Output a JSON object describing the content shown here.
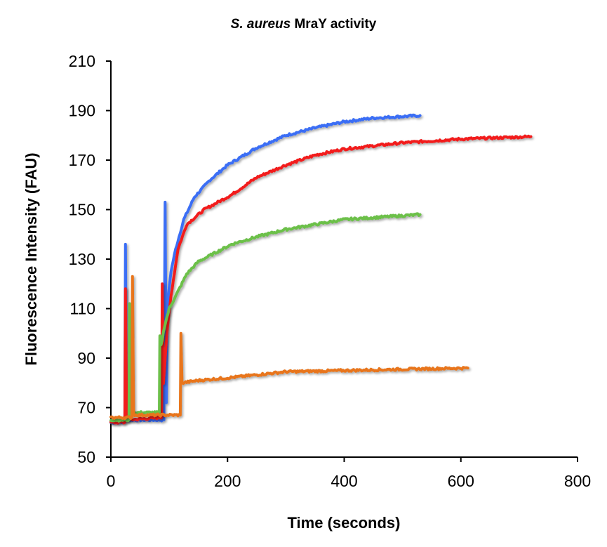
{
  "chart_data": {
    "type": "line",
    "title_italic": "S. aureus",
    "title_rest": " MraY activity",
    "xlabel": "Time (seconds)",
    "ylabel": "Fluorescence Intensity (FAU)",
    "xlim": [
      0,
      800
    ],
    "ylim": [
      50,
      210
    ],
    "xticks": [
      0,
      200,
      400,
      600,
      800
    ],
    "yticks": [
      50,
      70,
      90,
      110,
      130,
      150,
      170,
      190,
      210
    ],
    "grid": false,
    "legend": "none",
    "series": [
      {
        "name": "blue",
        "color": "#3b6ef5",
        "points": [
          [
            0,
            64
          ],
          [
            24,
            64
          ],
          [
            25,
            136
          ],
          [
            27,
            65
          ],
          [
            91,
            65
          ],
          [
            93,
            153
          ],
          [
            95,
            72
          ],
          [
            97,
            112
          ],
          [
            103,
            125
          ],
          [
            111,
            134
          ],
          [
            125,
            146
          ],
          [
            143,
            155
          ],
          [
            170,
            162
          ],
          [
            200,
            168
          ],
          [
            250,
            175
          ],
          [
            300,
            180
          ],
          [
            350,
            183
          ],
          [
            400,
            185.5
          ],
          [
            450,
            187
          ],
          [
            530,
            188
          ]
        ]
      },
      {
        "name": "red",
        "color": "#f21c1c",
        "points": [
          [
            0,
            64
          ],
          [
            24,
            64
          ],
          [
            25,
            118
          ],
          [
            27,
            65
          ],
          [
            87,
            66
          ],
          [
            88,
            120
          ],
          [
            90,
            80
          ],
          [
            96,
            100
          ],
          [
            103,
            115
          ],
          [
            115,
            134
          ],
          [
            130,
            144
          ],
          [
            160,
            150
          ],
          [
            207,
            156
          ],
          [
            250,
            163
          ],
          [
            300,
            168
          ],
          [
            350,
            172
          ],
          [
            400,
            174.5
          ],
          [
            500,
            177
          ],
          [
            600,
            178.5
          ],
          [
            720,
            179.5
          ]
        ]
      },
      {
        "name": "green",
        "color": "#6cc04a",
        "points": [
          [
            0,
            65
          ],
          [
            31,
            65
          ],
          [
            32,
            112
          ],
          [
            34,
            68
          ],
          [
            83,
            68
          ],
          [
            84,
            99
          ],
          [
            86,
            95
          ],
          [
            92,
            103
          ],
          [
            100,
            110
          ],
          [
            111,
            115
          ],
          [
            130,
            124
          ],
          [
            150,
            129
          ],
          [
            207,
            136
          ],
          [
            250,
            139
          ],
          [
            300,
            142
          ],
          [
            400,
            146
          ],
          [
            530,
            148
          ]
        ]
      },
      {
        "name": "orange",
        "color": "#e8751a",
        "points": [
          [
            0,
            66
          ],
          [
            36,
            66
          ],
          [
            37,
            123
          ],
          [
            39,
            67
          ],
          [
            119,
            67
          ],
          [
            120,
            100
          ],
          [
            122,
            80
          ],
          [
            150,
            81
          ],
          [
            200,
            82
          ],
          [
            300,
            84.5
          ],
          [
            400,
            85
          ],
          [
            500,
            85.5
          ],
          [
            612,
            86
          ]
        ]
      }
    ]
  }
}
